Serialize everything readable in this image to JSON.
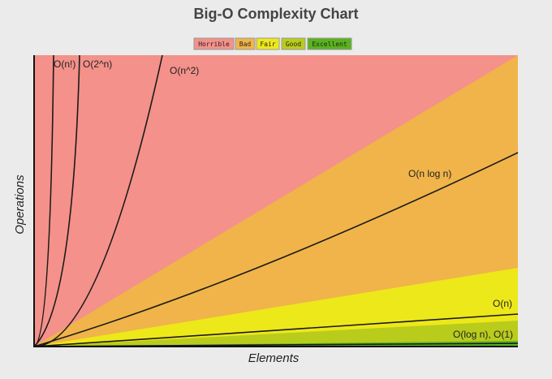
{
  "title": "Big-O Complexity Chart",
  "legend": [
    {
      "label": "Horrible",
      "color": "#f4918a"
    },
    {
      "label": "Bad",
      "color": "#f0b44a"
    },
    {
      "label": "Fair",
      "color": "#ede81a"
    },
    {
      "label": "Good",
      "color": "#b9cc1c"
    },
    {
      "label": "Excellent",
      "color": "#5ab31e"
    }
  ],
  "curves": [
    "O(n!)",
    "O(2^n)",
    "O(n^2)",
    "O(n log n)",
    "O(n)",
    "O(log n), O(1)"
  ],
  "x_label": "Elements",
  "y_label": "Operations"
}
